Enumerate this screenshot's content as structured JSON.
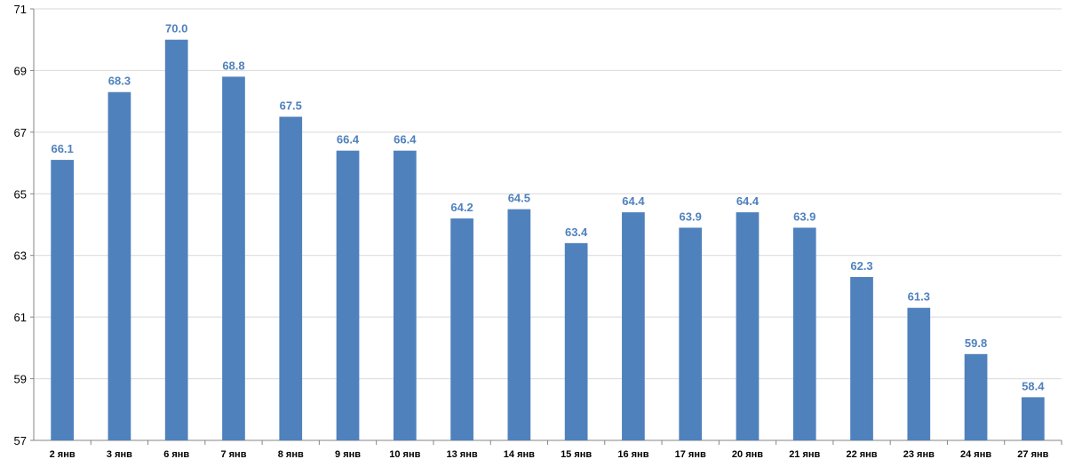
{
  "chart_data": {
    "type": "bar",
    "title": "",
    "xlabel": "",
    "ylabel": "",
    "categories": [
      "2 янв",
      "3 янв",
      "6 янв",
      "7 янв",
      "8 янв",
      "9 янв",
      "10 янв",
      "13 янв",
      "14 янв",
      "15 янв",
      "16 янв",
      "17 янв",
      "20 янв",
      "21 янв",
      "22 янв",
      "23 янв",
      "24 янв",
      "27 янв"
    ],
    "values": [
      66.1,
      68.3,
      70.0,
      68.8,
      67.5,
      66.4,
      66.4,
      64.2,
      64.5,
      63.4,
      64.4,
      63.9,
      64.4,
      63.9,
      62.3,
      61.3,
      59.8,
      58.4
    ],
    "data_labels": [
      "66.1",
      "68.3",
      "70.0",
      "68.8",
      "67.5",
      "66.4",
      "66.4",
      "64.2",
      "64.5",
      "63.4",
      "64.4",
      "63.9",
      "64.4",
      "63.9",
      "62.3",
      "61.3",
      "59.8",
      "58.4"
    ],
    "ylim": [
      57,
      71
    ],
    "yticks": [
      "57",
      "59",
      "61",
      "63",
      "65",
      "67",
      "69",
      "71"
    ],
    "grid": true,
    "legend": "none",
    "colors": {
      "bar": "#4F81BD",
      "data_label": "#4F81BD",
      "grid": "#D9D9D9",
      "axis": "#868686"
    }
  }
}
